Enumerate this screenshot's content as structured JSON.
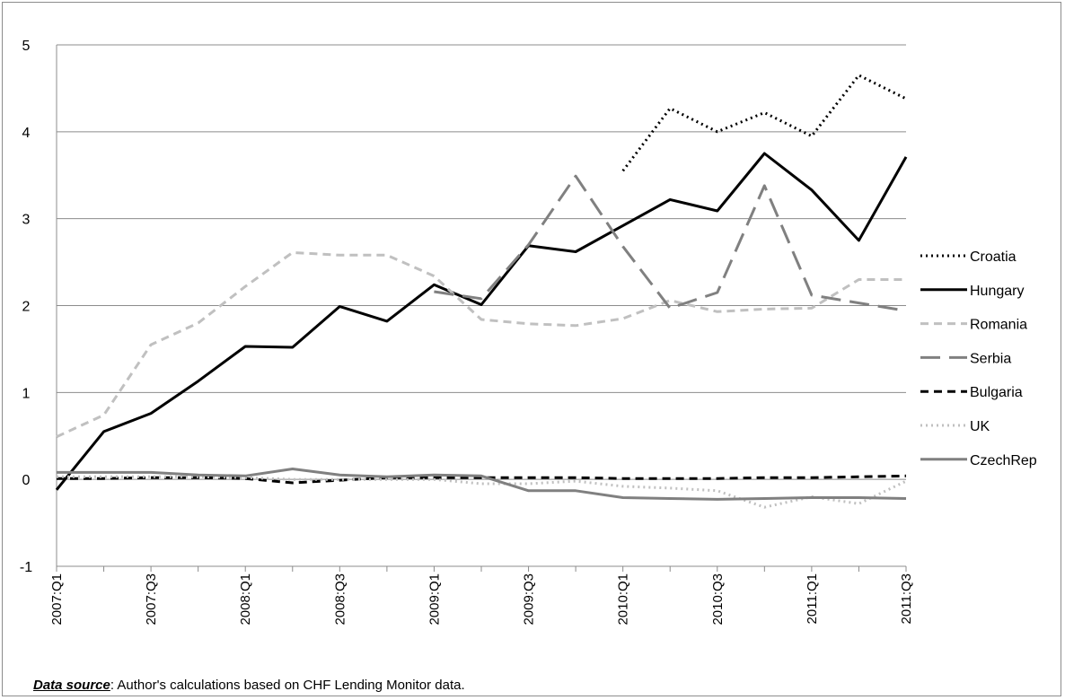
{
  "footnote": {
    "label": "Data source",
    "text": ": Author's calculations based on CHF Lending Monitor data."
  },
  "chart_data": {
    "type": "line",
    "title": "",
    "xlabel": "",
    "ylabel": "",
    "ylim": [
      -1,
      5
    ],
    "yticks": [
      "-1",
      "0",
      "1",
      "2",
      "3",
      "4",
      "5"
    ],
    "grid": true,
    "legend_position": "right",
    "x": [
      "2007:Q1",
      "2007:Q2",
      "2007:Q3",
      "2007:Q4",
      "2008:Q1",
      "2008:Q2",
      "2008:Q3",
      "2008:Q4",
      "2009:Q1",
      "2009:Q2",
      "2009:Q3",
      "2009:Q4",
      "2010:Q1",
      "2010:Q2",
      "2010:Q3",
      "2010:Q4",
      "2011:Q1",
      "2011:Q2",
      "2011:Q3"
    ],
    "x_tick_labels": [
      "2007:Q1",
      "2007:Q3",
      "2008:Q1",
      "2008:Q3",
      "2009:Q1",
      "2009:Q3",
      "2010:Q1",
      "2010:Q3",
      "2011:Q1",
      "2011:Q3"
    ],
    "series": [
      {
        "name": "Croatia",
        "color": "#000000",
        "dash": "dotted",
        "width": 3,
        "values": [
          null,
          null,
          null,
          null,
          null,
          null,
          null,
          null,
          null,
          null,
          null,
          null,
          3.55,
          4.27,
          4.0,
          4.22,
          3.95,
          4.65,
          4.38
        ]
      },
      {
        "name": "Hungary",
        "color": "#000000",
        "dash": "solid",
        "width": 3,
        "values": [
          -0.12,
          0.55,
          0.76,
          1.13,
          1.53,
          1.52,
          1.99,
          1.82,
          2.24,
          2.01,
          2.69,
          2.62,
          2.92,
          3.22,
          3.09,
          3.75,
          3.33,
          2.75,
          3.71
        ]
      },
      {
        "name": "Romania",
        "color": "#c0c0c0",
        "dash": "dashed",
        "width": 3,
        "values": [
          0.49,
          0.74,
          1.55,
          1.8,
          2.22,
          2.61,
          2.58,
          2.58,
          2.34,
          1.84,
          1.79,
          1.77,
          1.85,
          2.06,
          1.93,
          1.96,
          1.97,
          2.3,
          2.3
        ]
      },
      {
        "name": "Serbia",
        "color": "#808080",
        "dash": "longdash",
        "width": 3,
        "values": [
          null,
          null,
          null,
          null,
          null,
          null,
          null,
          null,
          2.16,
          2.08,
          2.7,
          3.49,
          2.68,
          1.97,
          2.15,
          3.38,
          2.12,
          2.03,
          1.94
        ]
      },
      {
        "name": "Bulgaria",
        "color": "#000000",
        "dash": "dashed",
        "width": 3,
        "values": [
          0.01,
          0.01,
          0.02,
          0.02,
          0.01,
          -0.04,
          -0.01,
          0.02,
          0.02,
          0.02,
          0.02,
          0.02,
          0.01,
          0.01,
          0.01,
          0.02,
          0.02,
          0.03,
          0.04
        ]
      },
      {
        "name": "UK",
        "color": "#c0c0c0",
        "dash": "dotted",
        "width": 3,
        "values": [
          0.03,
          0.03,
          0.03,
          0.03,
          0.02,
          0.0,
          0.0,
          0.0,
          0.0,
          -0.05,
          -0.05,
          -0.02,
          -0.08,
          -0.1,
          -0.13,
          -0.32,
          -0.2,
          -0.28,
          -0.02
        ]
      },
      {
        "name": "CzechRep",
        "color": "#808080",
        "dash": "solid",
        "width": 3,
        "values": [
          0.08,
          0.08,
          0.08,
          0.05,
          0.04,
          0.12,
          0.05,
          0.03,
          0.05,
          0.04,
          -0.13,
          -0.13,
          -0.21,
          -0.22,
          -0.23,
          -0.22,
          -0.21,
          -0.21,
          -0.22
        ]
      }
    ]
  }
}
